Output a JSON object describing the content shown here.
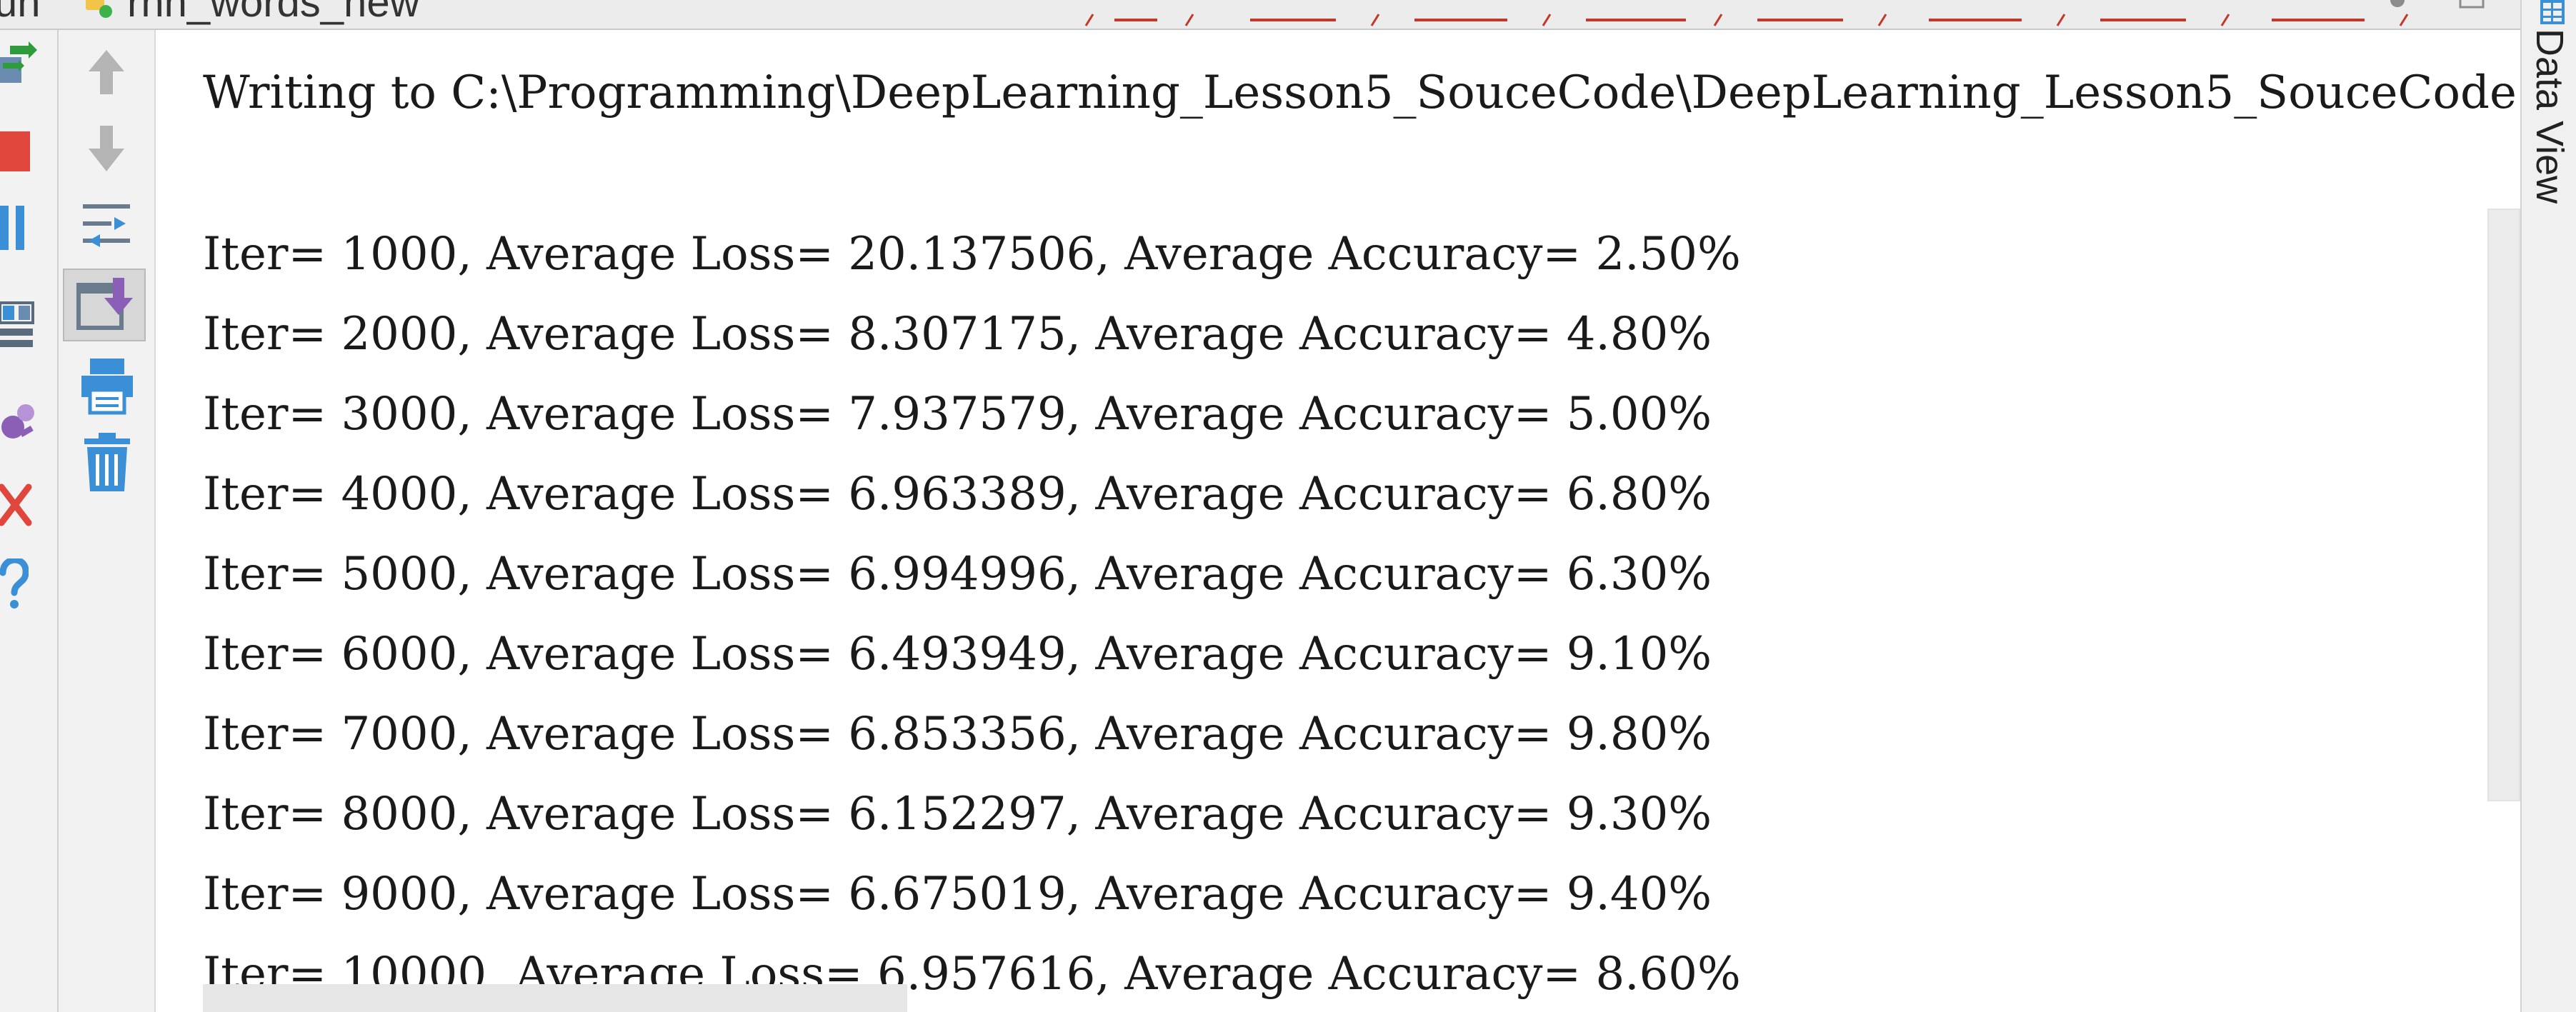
{
  "header": {
    "tool_window_label": "un",
    "run_config_name": "rnn_words_new"
  },
  "right_panel": {
    "data_view_label": "Data View"
  },
  "toolbar_outer": [
    {
      "name": "rerun-icon",
      "color": "#2e9c3d"
    },
    {
      "name": "stop-icon",
      "color": "#e0463c"
    },
    {
      "name": "pause-icon",
      "color": "#3b8fd6"
    },
    {
      "name": "layout-icon",
      "color": "#5a6b7d"
    },
    {
      "name": "debug-settings-icon",
      "color": "#8a5fb5"
    },
    {
      "name": "close-icon",
      "color": "#e0463c"
    },
    {
      "name": "help-icon",
      "color": "#3b8fd6"
    }
  ],
  "toolbar_inner": [
    {
      "name": "scroll-up-icon"
    },
    {
      "name": "scroll-down-icon"
    },
    {
      "name": "soft-wrap-icon"
    },
    {
      "name": "scroll-to-end-icon",
      "selected": true
    },
    {
      "name": "print-icon"
    },
    {
      "name": "clear-all-icon"
    }
  ],
  "console": {
    "writing_line": "Writing to C:\\Programming\\DeepLearning_Lesson5_SouceCode\\DeepLearning_Lesson5_SouceCode",
    "iterations": [
      "Iter= 1000, Average Loss= 20.137506, Average Accuracy= 2.50%",
      "Iter= 2000, Average Loss= 8.307175, Average Accuracy= 4.80%",
      "Iter= 3000, Average Loss= 7.937579, Average Accuracy= 5.00%",
      "Iter= 4000, Average Loss= 6.963389, Average Accuracy= 6.80%",
      "Iter= 5000, Average Loss= 6.994996, Average Accuracy= 6.30%",
      "Iter= 6000, Average Loss= 6.493949, Average Accuracy= 9.10%",
      "Iter= 7000, Average Loss= 6.853356, Average Accuracy= 9.80%",
      "Iter= 8000, Average Loss= 6.152297, Average Accuracy= 9.30%",
      "Iter= 9000, Average Loss= 6.675019, Average Accuracy= 9.40%",
      "Iter= 10000, Average Loss= 6.957616, Average Accuracy= 8.60%"
    ]
  }
}
